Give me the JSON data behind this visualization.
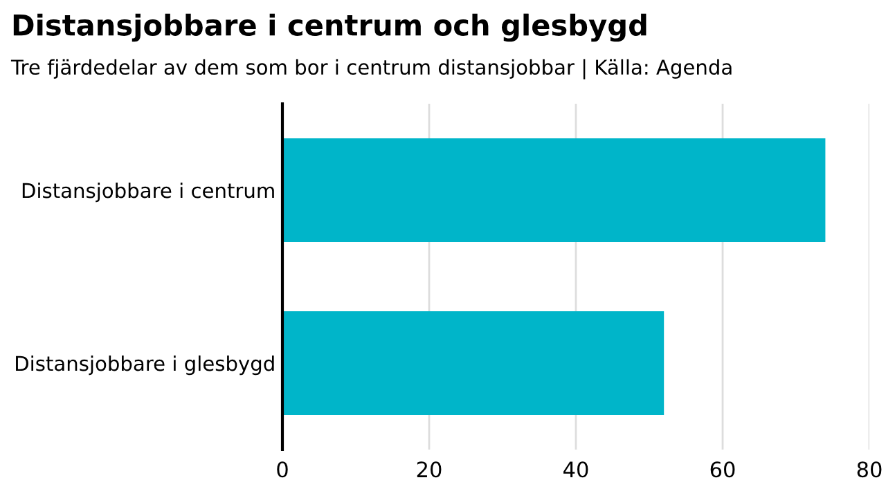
{
  "chart_data": {
    "type": "bar",
    "orientation": "horizontal",
    "title": "Distansjobbare i centrum och glesbygd",
    "subtitle": "Tre fjärdedelar av dem som bor i centrum distansjobbar | Källa: Agenda",
    "categories": [
      "Distansjobbare i centrum",
      "Distansjobbare i glesbygd"
    ],
    "values": [
      74,
      52
    ],
    "color": "#00b5c9",
    "xlim": [
      0,
      80
    ],
    "xticks": [
      0,
      20,
      40,
      60,
      80
    ],
    "grid": "x"
  }
}
